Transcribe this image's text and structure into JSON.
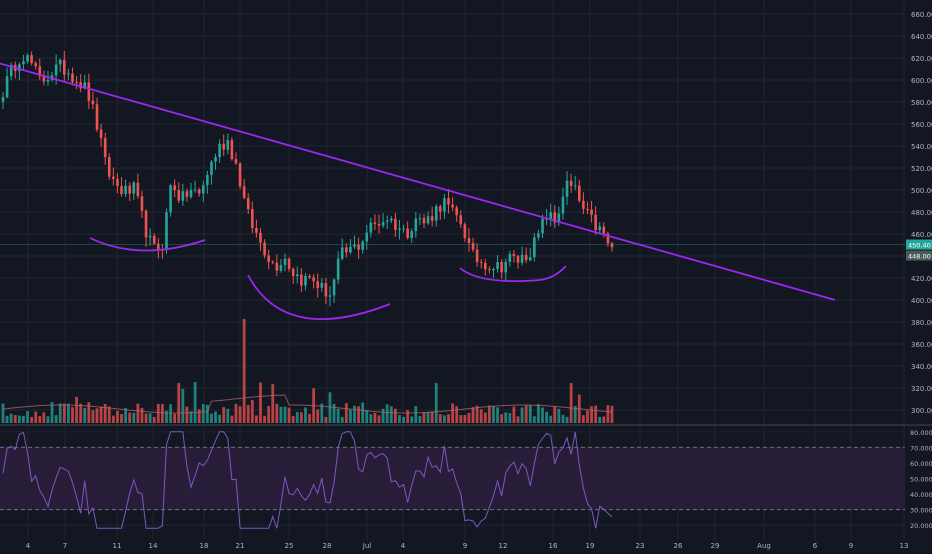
{
  "colors": {
    "background": "#131722",
    "grid": "#1f2430",
    "up": "#26a69a",
    "down": "#ef5350",
    "trendline": "#9c27f0",
    "rsi_line": "#7e57c2",
    "rsi_band": "#2a1e3c",
    "axis_text": "#b2b5be",
    "price_label_green": "#26a69a",
    "price_label_grey": "#4a5a5a"
  },
  "price_axis": {
    "ticks": [
      "660.00",
      "640.00",
      "620.00",
      "600.00",
      "580.00",
      "560.00",
      "540.00",
      "520.00",
      "500.00",
      "480.00",
      "460.00",
      "440.00",
      "420.00",
      "400.00",
      "380.00",
      "360.00",
      "340.00",
      "320.00",
      "300.00"
    ],
    "current_price_label": "450.40",
    "second_price_label": "448.00"
  },
  "rsi_axis": {
    "ticks": [
      "80.0000",
      "70.0000",
      "60.0000",
      "50.0000",
      "40.0000",
      "30.0000",
      "20.0000"
    ]
  },
  "time_axis": {
    "ticks": [
      "4",
      "7",
      "11",
      "14",
      "18",
      "21",
      "25",
      "28",
      "Jul",
      "4",
      "9",
      "12",
      "16",
      "19",
      "23",
      "26",
      "29",
      "Aug",
      "6",
      "9",
      "13"
    ]
  },
  "chart_data": [
    {
      "type": "candlestick",
      "ylim": [
        290,
        665
      ],
      "x_labels": [
        "4",
        "7",
        "11",
        "14",
        "18",
        "21",
        "25",
        "28",
        "Jul",
        "4",
        "9",
        "12",
        "16",
        "19",
        "23",
        "26",
        "29",
        "Aug",
        "6",
        "9",
        "13"
      ],
      "anchor_closes": [
        590,
        610,
        625,
        615,
        598,
        606,
        612,
        608,
        600,
        590,
        560,
        520,
        505,
        498,
        500,
        470,
        445,
        450,
        510,
        490,
        500,
        495,
        520,
        538,
        545,
        520,
        480,
        460,
        445,
        430,
        440,
        425,
        418,
        420,
        410,
        405,
        440,
        445,
        450,
        465,
        470,
        475,
        468,
        460,
        475,
        470,
        480,
        490,
        478,
        470,
        440,
        435,
        432,
        430,
        438,
        436,
        442,
        455,
        478,
        470,
        505,
        500,
        480,
        470,
        460,
        445
      ],
      "trendline": {
        "from": [
          590,
          615
        ],
        "to": [
          835,
          400
        ]
      },
      "price_labels": [
        450.4,
        448.0
      ]
    },
    {
      "type": "bar",
      "series": [
        {
          "name": "",
          "values": []
        }
      ],
      "note_series": "volume"
    },
    {
      "type": "line",
      "ylim": [
        15,
        85
      ],
      "bands": [
        30,
        70
      ],
      "series_name": ""
    }
  ]
}
